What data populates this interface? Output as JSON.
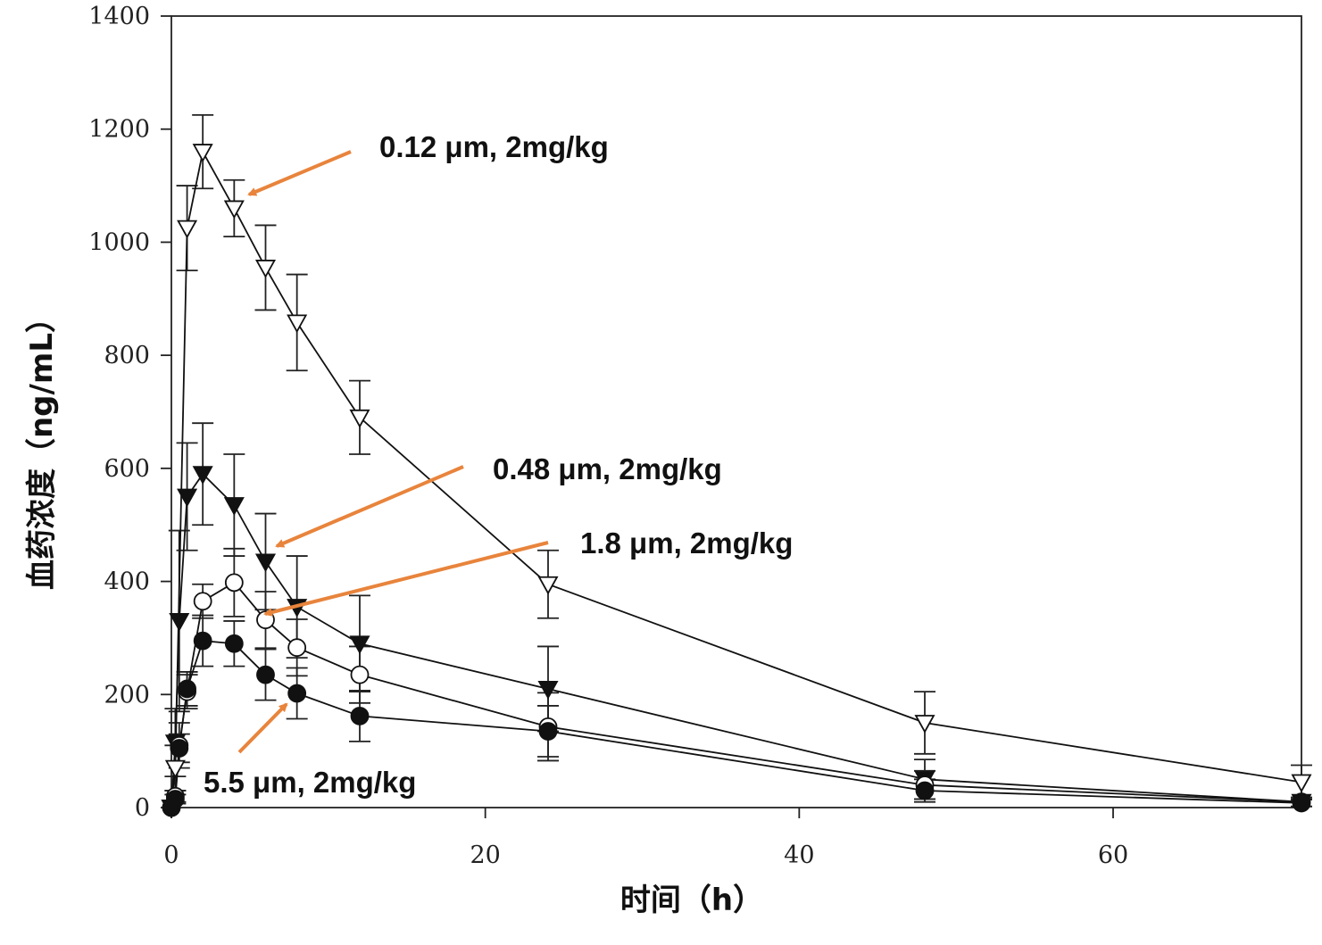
{
  "chart_data": {
    "type": "line",
    "xlabel": "时间（h）",
    "ylabel": "血药浓度（ng/mL）",
    "xlim": [
      0,
      72
    ],
    "ylim": [
      0,
      1400
    ],
    "xticks": [
      0,
      20,
      40,
      60
    ],
    "yticks": [
      0,
      200,
      400,
      600,
      800,
      1000,
      1200,
      1400
    ],
    "grid": false,
    "series": [
      {
        "name": "0.12 μm, 2mg/kg",
        "marker": "open-triangle-down",
        "color": "#111111",
        "x": [
          0,
          0.25,
          1,
          2,
          4,
          6,
          8,
          12,
          24,
          48,
          72
        ],
        "y": [
          0,
          70,
          1025,
          1160,
          1060,
          955,
          858,
          690,
          395,
          150,
          45
        ],
        "err": [
          0,
          40,
          75,
          65,
          50,
          75,
          85,
          65,
          60,
          55,
          30
        ]
      },
      {
        "name": "0.48 μm, 2mg/kg",
        "marker": "filled-triangle-down",
        "color": "#111111",
        "x": [
          0,
          0.25,
          0.5,
          1,
          2,
          4,
          6,
          8,
          12,
          24,
          48,
          72
        ],
        "y": [
          0,
          115,
          330,
          550,
          590,
          535,
          435,
          355,
          290,
          210,
          50,
          10
        ],
        "err": [
          0,
          60,
          160,
          95,
          90,
          90,
          85,
          90,
          85,
          75,
          35,
          8
        ]
      },
      {
        "name": "1.8 μm, 2mg/kg",
        "marker": "open-circle",
        "color": "#111111",
        "x": [
          0,
          0.25,
          0.5,
          1,
          2,
          4,
          6,
          8,
          12,
          24,
          48,
          72
        ],
        "y": [
          0,
          20,
          110,
          205,
          365,
          398,
          332,
          283,
          235,
          143,
          40,
          10
        ],
        "err": [
          0,
          10,
          40,
          30,
          30,
          60,
          50,
          50,
          50,
          60,
          25,
          8
        ]
      },
      {
        "name": "5.5 μm, 2mg/kg",
        "marker": "filled-circle",
        "color": "#111111",
        "x": [
          0,
          0.25,
          0.5,
          1,
          2,
          4,
          6,
          8,
          12,
          24,
          48,
          72
        ],
        "y": [
          0,
          15,
          105,
          210,
          295,
          290,
          235,
          202,
          162,
          135,
          30,
          8
        ],
        "err": [
          0,
          8,
          25,
          30,
          45,
          40,
          45,
          45,
          45,
          45,
          20,
          6
        ]
      }
    ],
    "annotations": [
      {
        "text": "0.12 μm, 2mg/kg",
        "series_index": 0,
        "point_x": 4,
        "point_y": 1090,
        "arrow_color": "#E8843C"
      },
      {
        "text": "0.48 μm, 2mg/kg",
        "series_index": 1,
        "point_x": 6.5,
        "point_y": 460,
        "arrow_color": "#E8843C"
      },
      {
        "text": "1.8 μm, 2mg/kg",
        "series_index": 2,
        "point_x": 6,
        "point_y": 340,
        "arrow_color": "#E8843C"
      },
      {
        "text": "5.5 μm, 2mg/kg",
        "series_index": 3,
        "point_x": 7.5,
        "point_y": 190,
        "arrow_color": "#E8843C"
      }
    ]
  }
}
